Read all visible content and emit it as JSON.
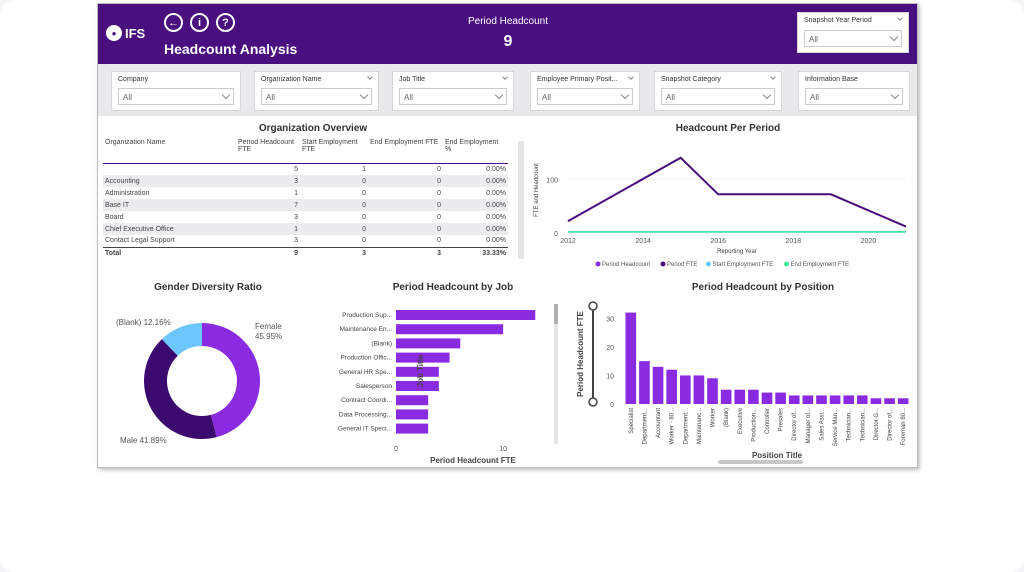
{
  "header": {
    "title": "Headcount Analysis",
    "logo_text": "IFS",
    "kpi_label": "Period Headcount",
    "kpi_value": "9",
    "snapshot_label": "Snapshot Year Period",
    "snapshot_value": "All",
    "back_icon": "back-arrow-icon",
    "info_icon": "info-icon",
    "help_icon": "help-icon",
    "brand_color": "#4a0f7f"
  },
  "filters": [
    {
      "label": "Company",
      "value": "All"
    },
    {
      "label": "Organization Name",
      "value": "All"
    },
    {
      "label": "Job Title",
      "value": "All"
    },
    {
      "label": "Employee Primary Posit...",
      "value": "All"
    },
    {
      "label": "Snapshot Category",
      "value": "All"
    },
    {
      "label": "Information Base",
      "value": "All"
    }
  ],
  "overview": {
    "title": "Organization Overview",
    "columns": [
      "Organization Name",
      "Period Headcount FTE",
      "Start Employment FTE",
      "End Employment FTE",
      "End Employment %"
    ],
    "rows": [
      [
        "",
        "5",
        "1",
        "0",
        "0.00%"
      ],
      [
        "Accounting",
        "3",
        "0",
        "0",
        "0.00%"
      ],
      [
        "Administration",
        "1",
        "0",
        "0",
        "0.00%"
      ],
      [
        "Base IT",
        "7",
        "0",
        "0",
        "0.00%"
      ],
      [
        "Board",
        "3",
        "0",
        "0",
        "0.00%"
      ],
      [
        "Chief Executive Office",
        "1",
        "0",
        "0",
        "0.00%"
      ],
      [
        "Contact Legal Support",
        "3",
        "0",
        "0",
        "0.00%"
      ]
    ],
    "total": [
      "Total",
      "9",
      "3",
      "3",
      "33.33%"
    ]
  },
  "headcount_period": {
    "title": "Headcount Per Period",
    "xlabel": "Reporting Year",
    "ylabel": "FTE and Headcount",
    "x_ticks": [
      "2012",
      "2014",
      "2016",
      "2018",
      "2020"
    ],
    "y_ticks": [
      "0",
      "100"
    ],
    "legend": [
      "Period Headcount",
      "Period FTE",
      "Start Employment FTE",
      "End Employment FTE"
    ],
    "colors": [
      "#8a2be2",
      "#4a0f7f",
      "#6ec6ff",
      "#3ee89a"
    ]
  },
  "gender": {
    "title": "Gender Diversity Ratio",
    "labels": [
      "Female",
      "45.95%",
      "Male 41.89%",
      "(Blank) 12.16%"
    ]
  },
  "by_job": {
    "title": "Period Headcount by Job",
    "xlabel": "Period Headcount FTE",
    "ylabel": "Job Title",
    "x_ticks": [
      "0",
      "10"
    ]
  },
  "by_position": {
    "title": "Period Headcount by Position",
    "xlabel": "Position Title",
    "ylabel": "Period Headcount FTE",
    "y_ticks": [
      "30",
      "20",
      "10",
      "0"
    ]
  },
  "chart_data": [
    {
      "type": "line",
      "title": "Headcount Per Period",
      "xlabel": "Reporting Year",
      "ylabel": "FTE and Headcount",
      "x": [
        2012,
        2015,
        2016,
        2019,
        2021
      ],
      "series": [
        {
          "name": "Period Headcount",
          "values": [
            22,
            140,
            72,
            72,
            12
          ]
        },
        {
          "name": "Period FTE",
          "values": [
            22,
            140,
            72,
            72,
            12
          ]
        },
        {
          "name": "Start Employment FTE",
          "values": [
            2,
            2,
            2,
            2,
            2
          ]
        },
        {
          "name": "End Employment FTE",
          "values": [
            2,
            2,
            2,
            2,
            2
          ]
        }
      ],
      "ylim": [
        0,
        160
      ],
      "legend": "bottom"
    },
    {
      "type": "pie",
      "title": "Gender Diversity Ratio",
      "categories": [
        "Female",
        "Male",
        "(Blank)"
      ],
      "values": [
        45.95,
        41.89,
        12.16
      ],
      "colors": [
        "#8a2be2",
        "#3b0a6e",
        "#6ec6ff"
      ]
    },
    {
      "type": "bar",
      "title": "Period Headcount by Job",
      "xlabel": "Period Headcount FTE",
      "ylabel": "Job Title",
      "categories": [
        "Production Sup...",
        "Maintenance En...",
        "(Blank)",
        "Production Offic...",
        "General HR Spe...",
        "Salesperson",
        "Contract Coordi...",
        "Data Processing...",
        "General IT Speci..."
      ],
      "values": [
        13,
        10,
        6,
        5,
        4,
        4,
        3,
        3,
        3
      ],
      "xlim": [
        0,
        14
      ]
    },
    {
      "type": "bar",
      "title": "Period Headcount by Position",
      "xlabel": "Position Title",
      "ylabel": "Period Headcount FTE",
      "categories": [
        "Specialist",
        "Department...",
        "Accountant",
        "Worker - 80...",
        "Department...",
        "Maintenanc...",
        "Worker",
        "(Blank)",
        "Executive",
        "Production...",
        "Controller",
        "Presales",
        "Director of...",
        "Manager of...",
        "Sales Assi...",
        "Service Man...",
        "Technician...",
        "Technician...",
        "Director G...",
        "Director of...",
        "Foreman 80..."
      ],
      "values": [
        32,
        15,
        13,
        12,
        10,
        10,
        9,
        5,
        5,
        5,
        4,
        4,
        3,
        3,
        3,
        3,
        3,
        3,
        2,
        2,
        2
      ],
      "ylim": [
        0,
        35
      ]
    }
  ]
}
